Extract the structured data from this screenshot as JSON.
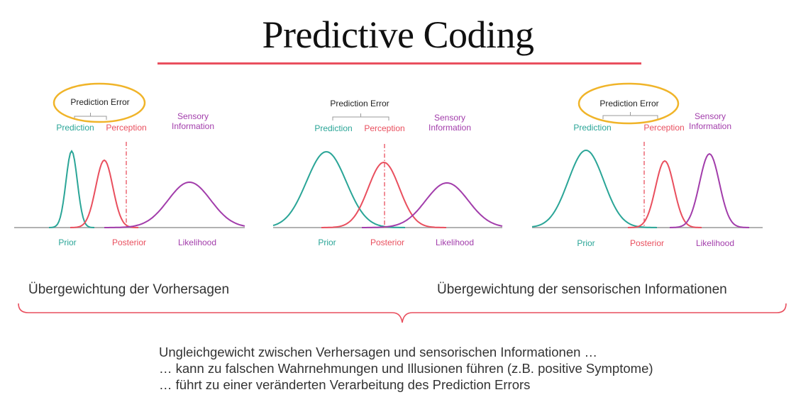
{
  "title": "Predictive Coding",
  "colors": {
    "prior": "#2aa597",
    "posterior": "#e94f5e",
    "likelihood": "#a23dab",
    "highlight": "#f0b429",
    "axis": "#999999"
  },
  "panels": [
    {
      "highlighted": true,
      "labels": {
        "prediction_error": "Prediction Error",
        "prediction": "Prediction",
        "perception": "Perception",
        "sensory_information": "Sensory\nInformation",
        "prior": "Prior",
        "posterior": "Posterior",
        "likelihood": "Likelihood"
      }
    },
    {
      "highlighted": false,
      "labels": {
        "prediction_error": "Prediction Error",
        "prediction": "Prediction",
        "perception": "Perception",
        "sensory_information": "Sensory\nInformation",
        "prior": "Prior",
        "posterior": "Posterior",
        "likelihood": "Likelihood"
      }
    },
    {
      "highlighted": true,
      "labels": {
        "prediction_error": "Prediction Error",
        "prediction": "Prediction",
        "perception": "Perception",
        "sensory_information": "Sensory\nInformation",
        "prior": "Prior",
        "posterior": "Posterior",
        "likelihood": "Likelihood"
      }
    }
  ],
  "captions": {
    "left": "Übergewichtung der Vorhersagen",
    "right": "Übergewichtung der sensorischen Informationen"
  },
  "notes": [
    "Ungleichgewicht zwischen Verhersagen und sensorischen Informationen …",
    "… kann zu falschen Wahrnehmungen und Illusionen führen (z.B. positive Symptome)",
    "… führt zu einer veränderten Verarbeitung des Prediction Errors"
  ]
}
